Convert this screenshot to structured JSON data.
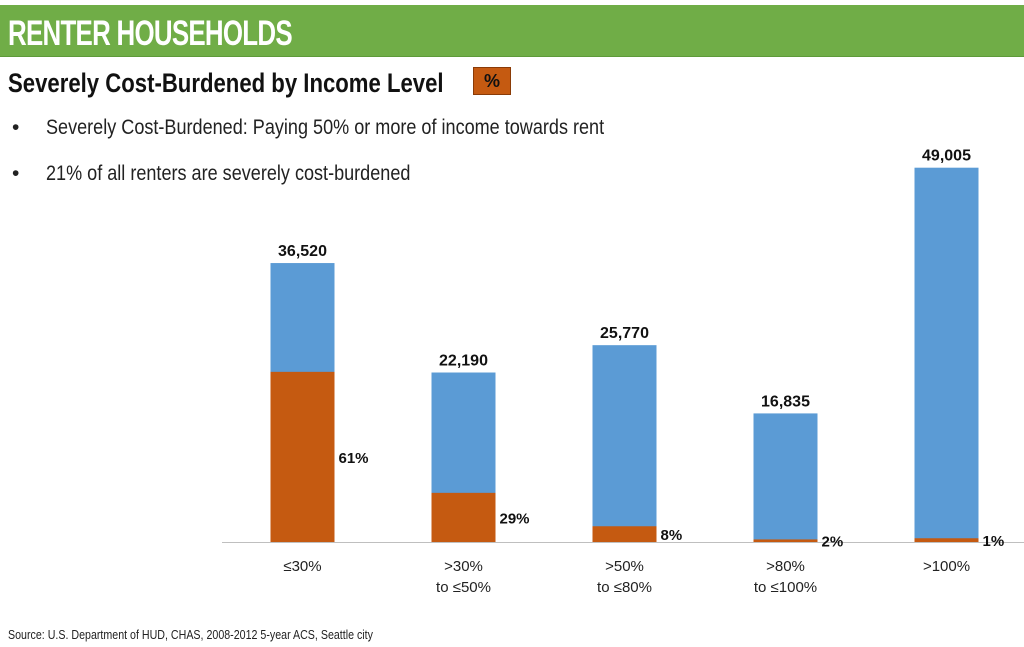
{
  "header": {
    "title": "RENTER HOUSEHOLDS"
  },
  "subtitle": "Severely Cost-Burdened by Income Level",
  "legend": {
    "swatch_label": "%"
  },
  "bullets": [
    {
      "marker": "•",
      "text": "Severely Cost-Burdened: Paying 50% or more of income towards rent"
    },
    {
      "marker": "•",
      "text": "21% of all renters are severely cost-burdened"
    }
  ],
  "source": "Source: U.S. Department of HUD, CHAS, 2008-2012 5-year ACS, Seattle city",
  "colors": {
    "header": "#70ad47",
    "total": "#5b9bd5",
    "burdened": "#c55a11"
  },
  "chart_data": {
    "type": "bar",
    "categories": [
      [
        "≤30%"
      ],
      [
        ">30%",
        "to ≤50%"
      ],
      [
        ">50%",
        "to ≤80%"
      ],
      [
        ">80%",
        "to ≤100%"
      ],
      [
        ">100%"
      ]
    ],
    "series": [
      {
        "values": [
          36520,
          22190,
          25770,
          16835,
          49005
        ]
      },
      {
        "values": [
          61,
          29,
          8,
          2,
          1
        ]
      }
    ],
    "value_labels": [
      "36,520",
      "22,190",
      "25,770",
      "16,835",
      "49,005"
    ],
    "percent_labels": [
      "61%",
      "29%",
      "8%",
      "2%",
      "1%"
    ],
    "ylim": [
      0,
      52500
    ],
    "grid": false,
    "stacked": "overlay"
  }
}
